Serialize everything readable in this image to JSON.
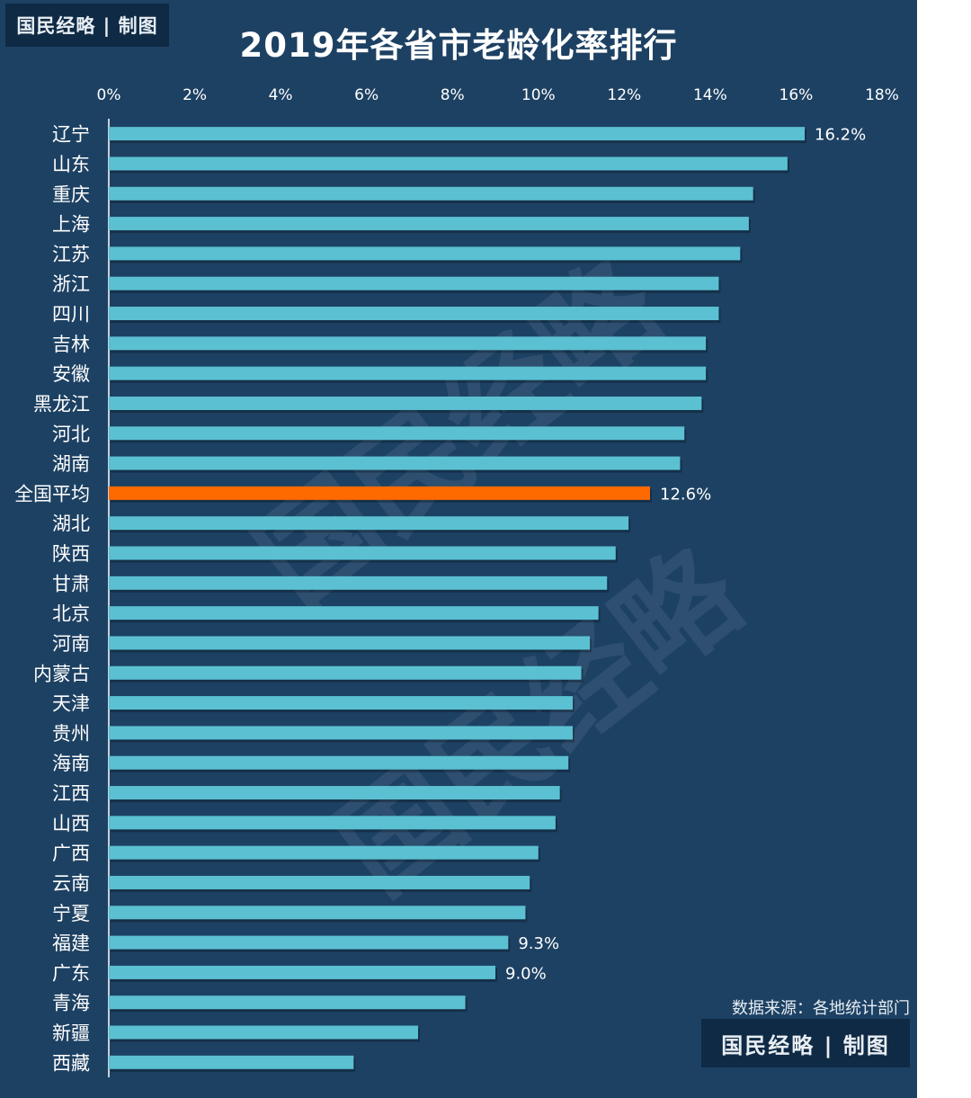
{
  "brand": {
    "top": "国民经略 | 制图",
    "bottom": "国民经略 | 制图"
  },
  "watermark": "国民经略",
  "source": "数据来源：各地统计部门",
  "colors": {
    "background": "#1d4163",
    "bar": "#5bc1d2",
    "highlight": "#ff6a00",
    "text": "#ffffff"
  },
  "chart_data": {
    "type": "bar",
    "orientation": "horizontal",
    "title": "2019年各省市老龄化率排行",
    "xlabel": "",
    "ylabel": "",
    "xlim": [
      0,
      18
    ],
    "xticks": [
      "0%",
      "2%",
      "4%",
      "6%",
      "8%",
      "10%",
      "12%",
      "14%",
      "16%",
      "18%"
    ],
    "grid": false,
    "categories": [
      "辽宁",
      "山东",
      "重庆",
      "上海",
      "江苏",
      "浙江",
      "四川",
      "吉林",
      "安徽",
      "黑龙江",
      "河北",
      "湖南",
      "全国平均",
      "湖北",
      "陕西",
      "甘肃",
      "北京",
      "河南",
      "内蒙古",
      "天津",
      "贵州",
      "海南",
      "江西",
      "山西",
      "广西",
      "云南",
      "宁夏",
      "福建",
      "广东",
      "青海",
      "新疆",
      "西藏"
    ],
    "values": [
      16.2,
      15.8,
      15.0,
      14.9,
      14.7,
      14.2,
      14.2,
      13.9,
      13.9,
      13.8,
      13.4,
      13.3,
      12.6,
      12.1,
      11.8,
      11.6,
      11.4,
      11.2,
      11.0,
      10.8,
      10.8,
      10.7,
      10.5,
      10.4,
      10.0,
      9.8,
      9.7,
      9.3,
      9.0,
      8.3,
      7.2,
      5.7
    ],
    "highlight_category": "全国平均",
    "data_labels": [
      {
        "category": "辽宁",
        "label": "16.2%"
      },
      {
        "category": "全国平均",
        "label": "12.6%"
      },
      {
        "category": "福建",
        "label": "9.3%"
      },
      {
        "category": "广东",
        "label": "9.0%"
      }
    ]
  }
}
